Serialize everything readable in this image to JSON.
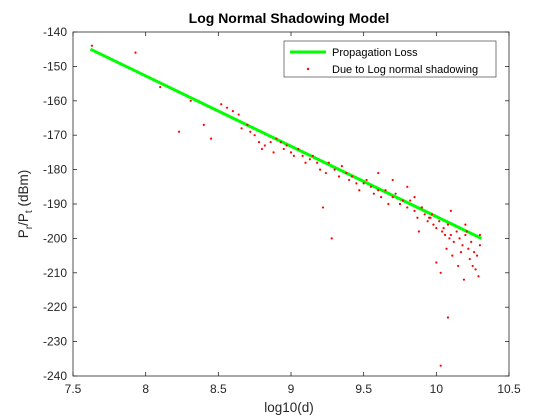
{
  "chart_data": {
    "type": "scatter",
    "title": "Log Normal Shadowing Model",
    "xlabel": "log10(d)",
    "ylabel_main": "P",
    "ylabel_sub_r": "r",
    "ylabel_slash": "/P",
    "ylabel_sub_t": "t",
    "ylabel_unit": " (dBm)",
    "xlim": [
      7.5,
      10.5
    ],
    "ylim": [
      -240,
      -140
    ],
    "xticks": [
      7.5,
      8,
      8.5,
      9,
      9.5,
      10,
      10.5
    ],
    "xtick_labels": [
      "7.5",
      "8",
      "8.5",
      "9",
      "9.5",
      "10",
      "10.5"
    ],
    "yticks": [
      -240,
      -230,
      -220,
      -210,
      -200,
      -190,
      -180,
      -170,
      -160,
      -150,
      -140
    ],
    "ytick_labels": [
      "-240",
      "-230",
      "-220",
      "-210",
      "-200",
      "-190",
      "-180",
      "-170",
      "-160",
      "-150",
      "-140"
    ],
    "grid": false,
    "legend_position": "top-right",
    "series": [
      {
        "name": "Propagation Loss",
        "kind": "line",
        "color": "#00ff00",
        "x": [
          7.62,
          10.31
        ],
        "y": [
          -145,
          -200
        ]
      },
      {
        "name": "Due to Log normal shadowing",
        "kind": "scatter",
        "color": "#ff0000",
        "x": [
          7.63,
          7.93,
          8.1,
          8.23,
          8.31,
          8.4,
          8.45,
          8.52,
          8.56,
          8.6,
          8.64,
          8.66,
          8.7,
          8.72,
          8.75,
          8.78,
          8.8,
          8.82,
          8.86,
          8.88,
          8.9,
          8.93,
          8.95,
          8.97,
          9.0,
          9.02,
          9.05,
          9.08,
          9.1,
          9.13,
          9.15,
          9.18,
          9.2,
          9.22,
          9.24,
          9.26,
          9.28,
          9.3,
          9.33,
          9.35,
          9.38,
          9.4,
          9.42,
          9.45,
          9.47,
          9.5,
          9.52,
          9.55,
          9.57,
          9.6,
          9.62,
          9.65,
          9.67,
          9.7,
          9.72,
          9.75,
          9.77,
          9.8,
          9.82,
          9.85,
          9.87,
          9.9,
          9.92,
          9.94,
          9.96,
          9.98,
          10.0,
          10.02,
          10.04,
          10.06,
          10.08,
          10.1,
          10.12,
          10.14,
          10.16,
          10.18,
          10.2,
          10.22,
          10.24,
          10.26,
          10.28,
          10.3,
          10.0,
          10.03,
          10.07,
          10.11,
          10.15,
          10.19,
          10.23,
          10.27,
          9.6,
          9.7,
          9.8,
          9.85,
          9.9,
          9.95,
          10.05,
          10.1,
          10.2,
          10.25,
          10.3,
          9.75,
          9.88,
          9.97,
          10.09,
          10.17,
          10.21,
          10.29,
          10.08,
          10.03
        ],
        "y": [
          -144,
          -146,
          -156,
          -169,
          -160,
          -167,
          -171,
          -161,
          -162,
          -163,
          -164,
          -168,
          -167,
          -169,
          -170,
          -172,
          -174,
          -173,
          -172,
          -175,
          -171,
          -172,
          -174,
          -173,
          -175,
          -176,
          -174,
          -176,
          -178,
          -177,
          -176,
          -178,
          -180,
          -191,
          -181,
          -178,
          -200,
          -180,
          -182,
          -179,
          -181,
          -183,
          -182,
          -184,
          -186,
          -184,
          -183,
          -185,
          -187,
          -186,
          -188,
          -186,
          -190,
          -188,
          -187,
          -190,
          -189,
          -191,
          -189,
          -192,
          -194,
          -191,
          -193,
          -195,
          -194,
          -196,
          -197,
          -195,
          -198,
          -199,
          -196,
          -199,
          -201,
          -198,
          -200,
          -202,
          -199,
          -203,
          -201,
          -204,
          -205,
          -202,
          -207,
          -210,
          -203,
          -205,
          -208,
          -212,
          -206,
          -209,
          -181,
          -183,
          -185,
          -188,
          -191,
          -194,
          -197,
          -192,
          -196,
          -208,
          -199,
          -190,
          -198,
          -193,
          -200,
          -204,
          -198,
          -211,
          -223,
          -237
        ]
      }
    ]
  }
}
